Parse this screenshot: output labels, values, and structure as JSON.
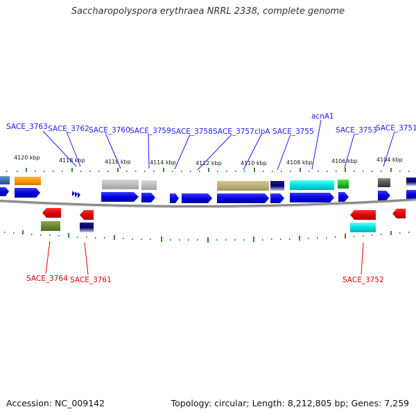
{
  "title": "Saccharopolyspora erythraea NRRL 2338, complete genome",
  "accession": "Accession: NC_009142",
  "topology": "Topology: circular; Length: 8,212,805 bp; Genes: 7,259",
  "colors": {
    "forward_label": "#1a1aff",
    "reverse_label": "#e00000",
    "cds_forward": "#1515ee",
    "cds_reverse": "#e00000",
    "backbone": "#888888",
    "ticks": "#2d8a2d"
  },
  "kbp_labels": [
    "4120 kbp",
    "4118 kbp",
    "4116 kbp",
    "4114 kbp",
    "4112 kbp",
    "4110 kbp",
    "4108 kbp",
    "4106 kbp",
    "4104 kbp"
  ],
  "forward_genes": [
    "SACE_3763",
    "SACE_3762",
    "SACE_3760",
    "SACE_3759",
    "SACE_3758",
    "SACE_3757",
    "clpA",
    "SACE_3755",
    "acnA1",
    "SACE_3753",
    "SACE_3751"
  ],
  "reverse_genes": [
    "SACE_3764",
    "SACE_3761",
    "SACE_3752"
  ]
}
